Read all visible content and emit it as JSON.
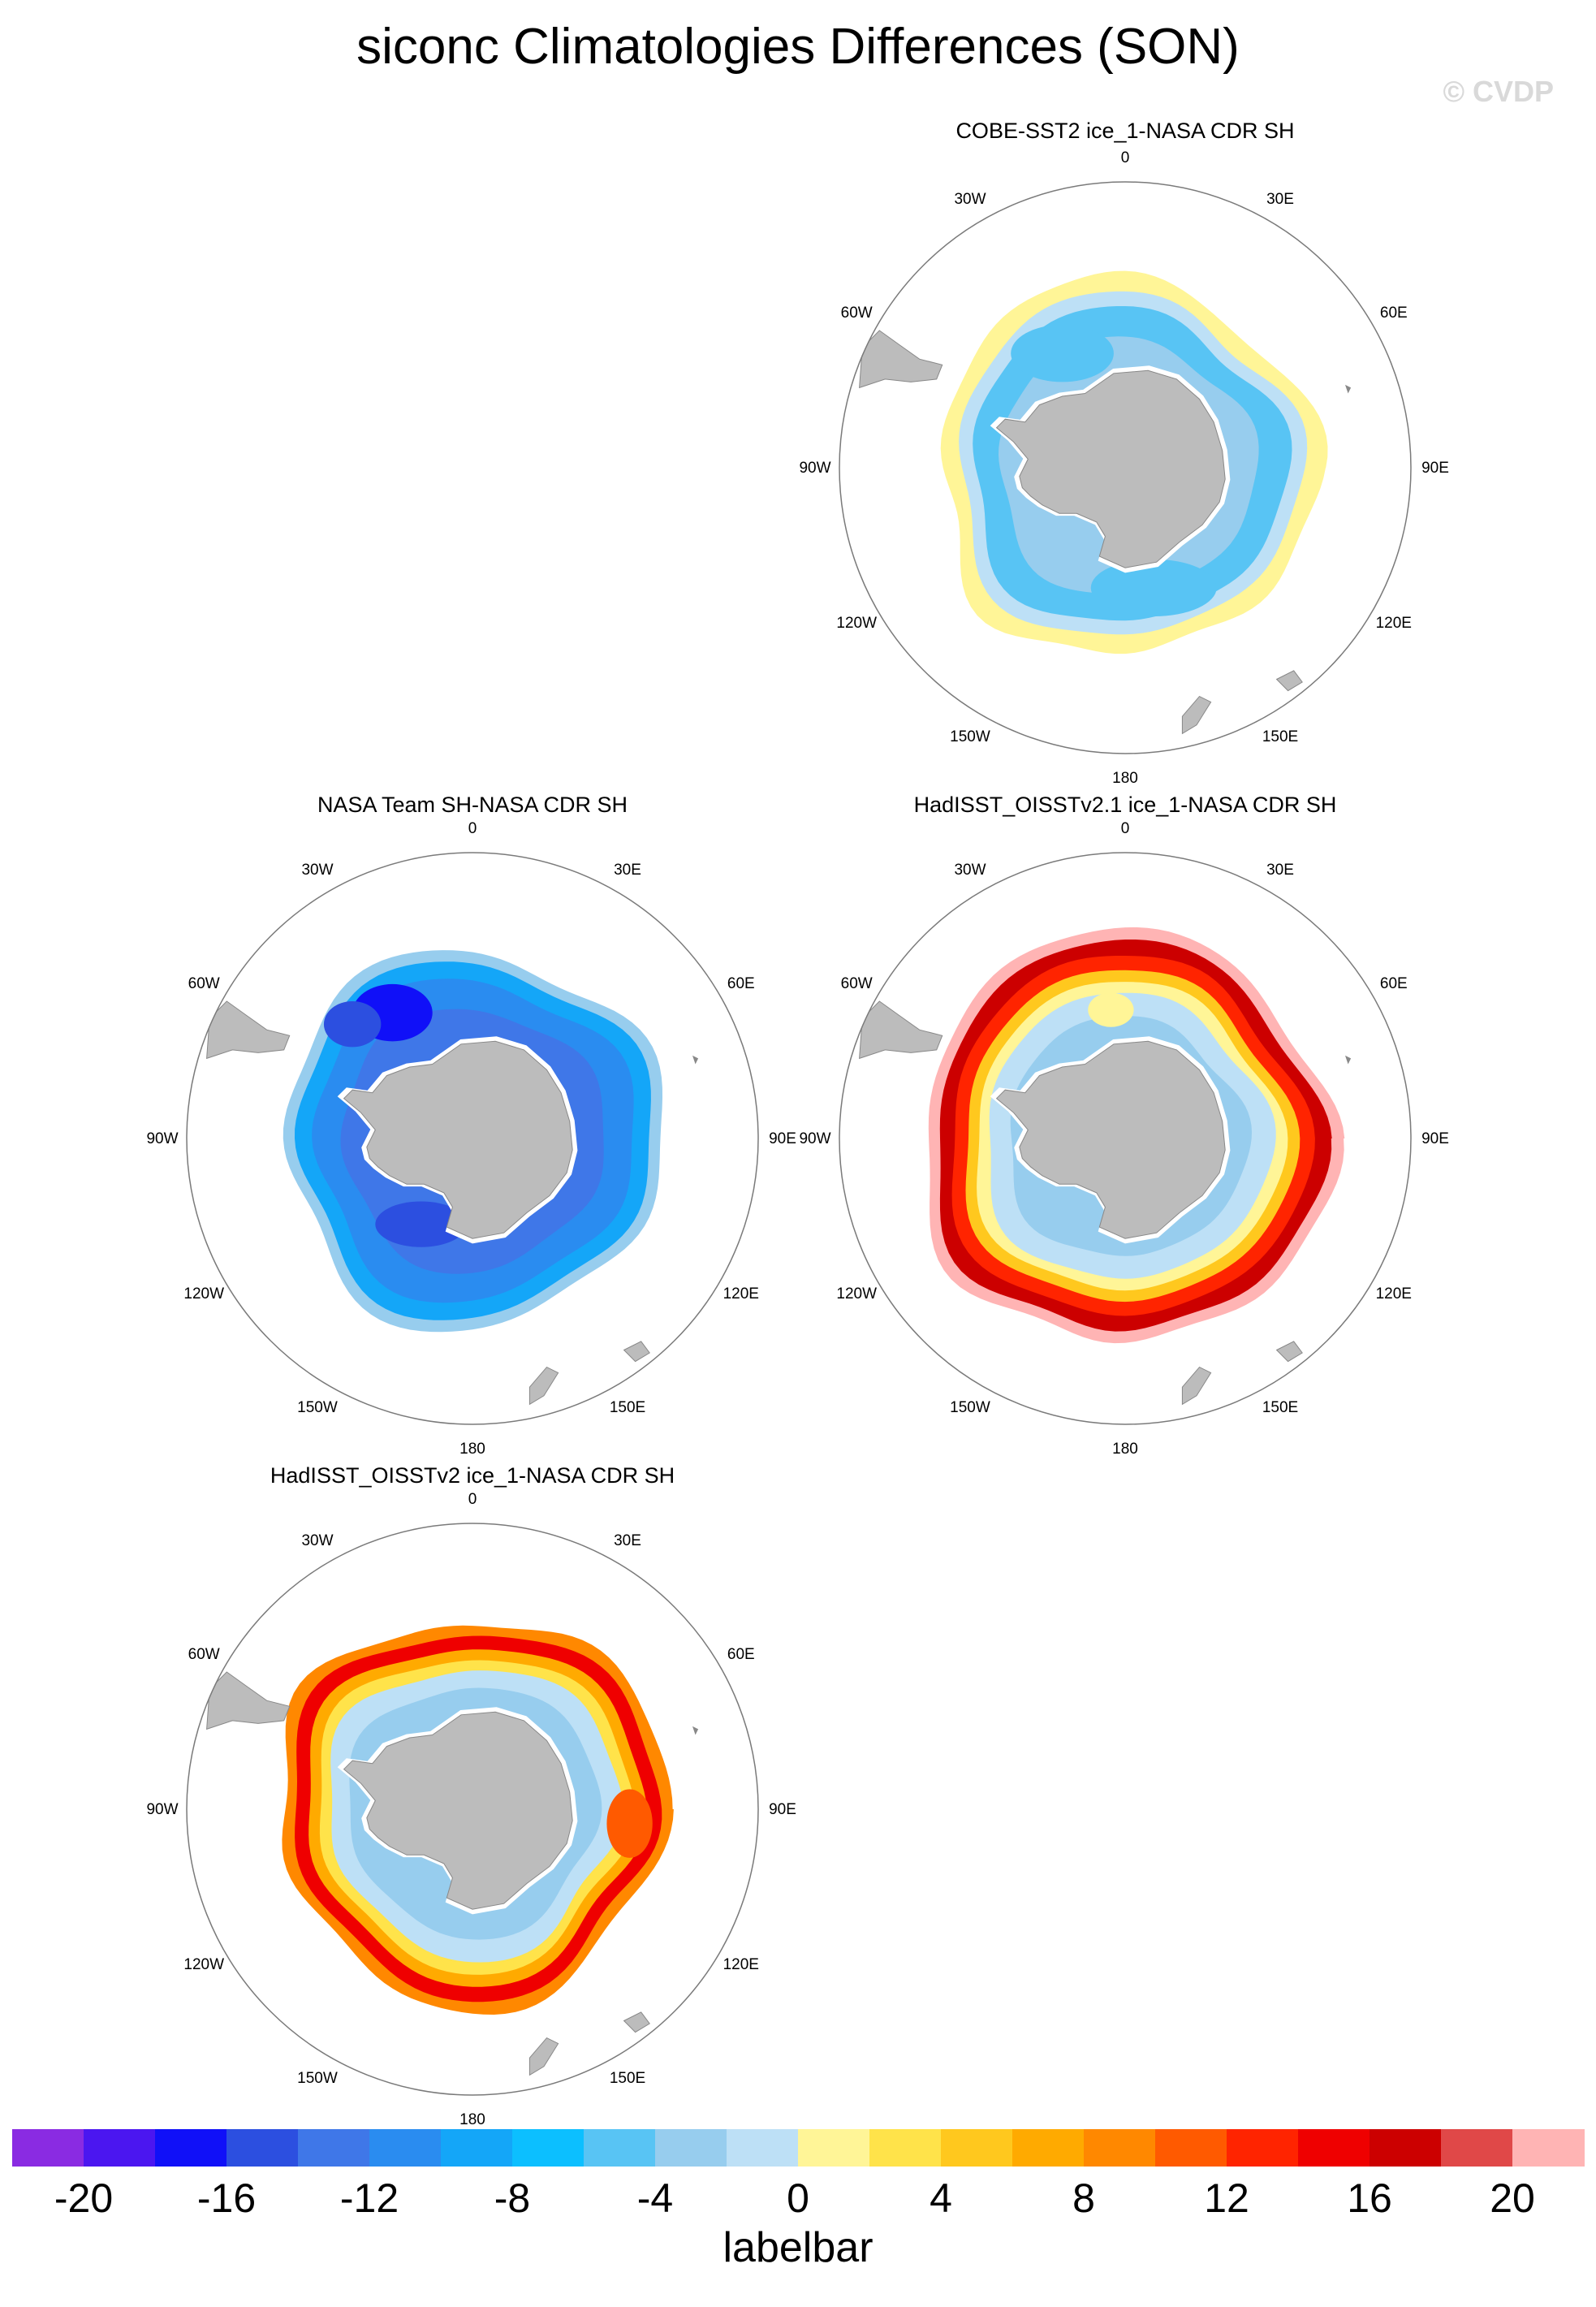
{
  "title": "siconc Climatologies Differences (SON)",
  "watermark": "© CVDP",
  "longitude_labels": [
    "0",
    "30E",
    "60E",
    "90E",
    "120E",
    "150E",
    "180",
    "150W",
    "120W",
    "90W",
    "60W",
    "30W"
  ],
  "panels": [
    {
      "title": "COBE-SST2 ice_1-NASA CDR SH",
      "pattern": "mild-negative"
    },
    {
      "title": "NASA Team SH-NASA CDR SH",
      "pattern": "strong-negative"
    },
    {
      "title": "HadISST_OISSTv2.1 ice_1-NASA CDR SH",
      "pattern": "positive-edge"
    },
    {
      "title": "HadISST_OISSTv2 ice_1-NASA CDR SH",
      "pattern": "positive-edge-mild"
    }
  ],
  "colorbar": {
    "title": "labelbar",
    "colors": [
      "#8a2be2",
      "#4b16f0",
      "#1010f8",
      "#2c4fe0",
      "#3f77e8",
      "#2a8cf0",
      "#14a6f8",
      "#0cbfff",
      "#58c4f4",
      "#97cdee",
      "#bde0f6",
      "#fff597",
      "#ffe34a",
      "#ffc81e",
      "#ffaa00",
      "#ff8800",
      "#ff5a00",
      "#ff2400",
      "#ef0000",
      "#cc0000",
      "#e04848",
      "#ffb4b4"
    ],
    "ticks": [
      "-20",
      "-16",
      "-12",
      "-8",
      "-4",
      "0",
      "4",
      "8",
      "12",
      "16",
      "20"
    ]
  }
}
